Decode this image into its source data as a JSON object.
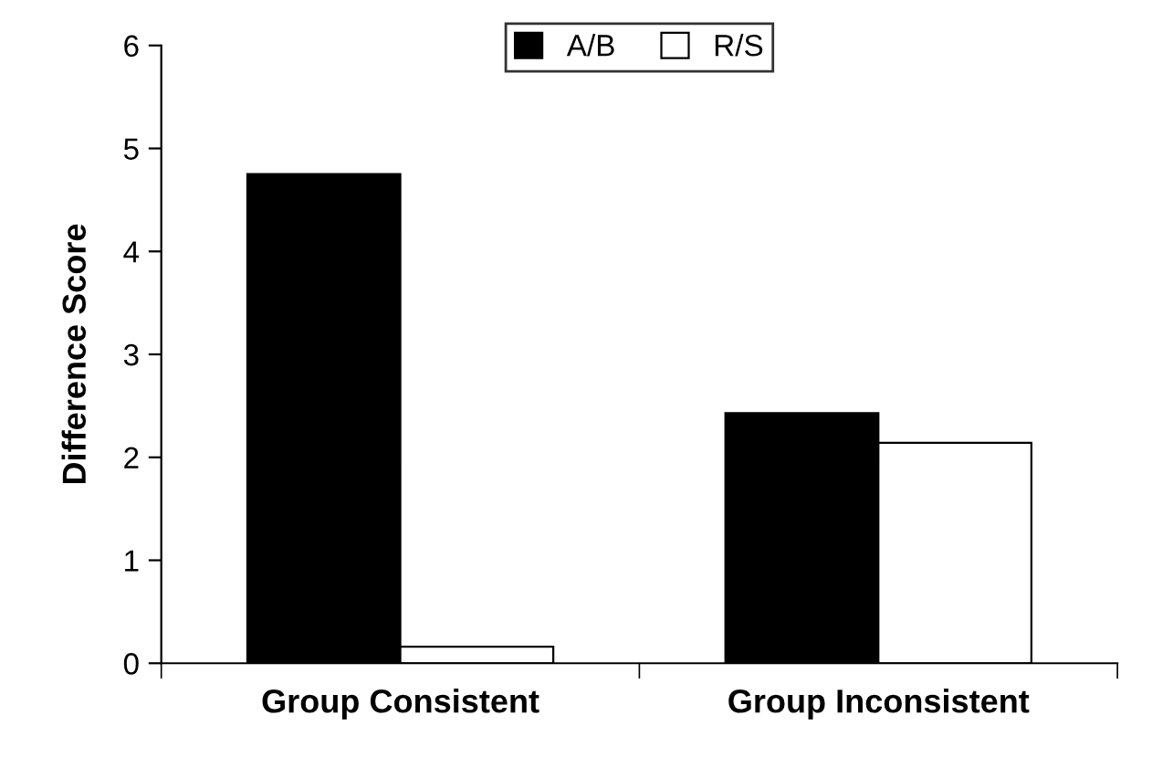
{
  "chart_data": {
    "type": "bar",
    "ylabel": "Difference Score",
    "categories": [
      "Group Consistent",
      "Group Inconsistent"
    ],
    "series": [
      {
        "name": "A/B",
        "color": "#000000",
        "values": [
          4.75,
          2.43
        ]
      },
      {
        "name": "R/S",
        "color": "#ffffff",
        "values": [
          0.16,
          2.14
        ]
      }
    ],
    "ylim": [
      0,
      6
    ],
    "yticks": [
      0,
      1,
      2,
      3,
      4,
      5,
      6
    ],
    "grid": false,
    "legend": "top"
  }
}
